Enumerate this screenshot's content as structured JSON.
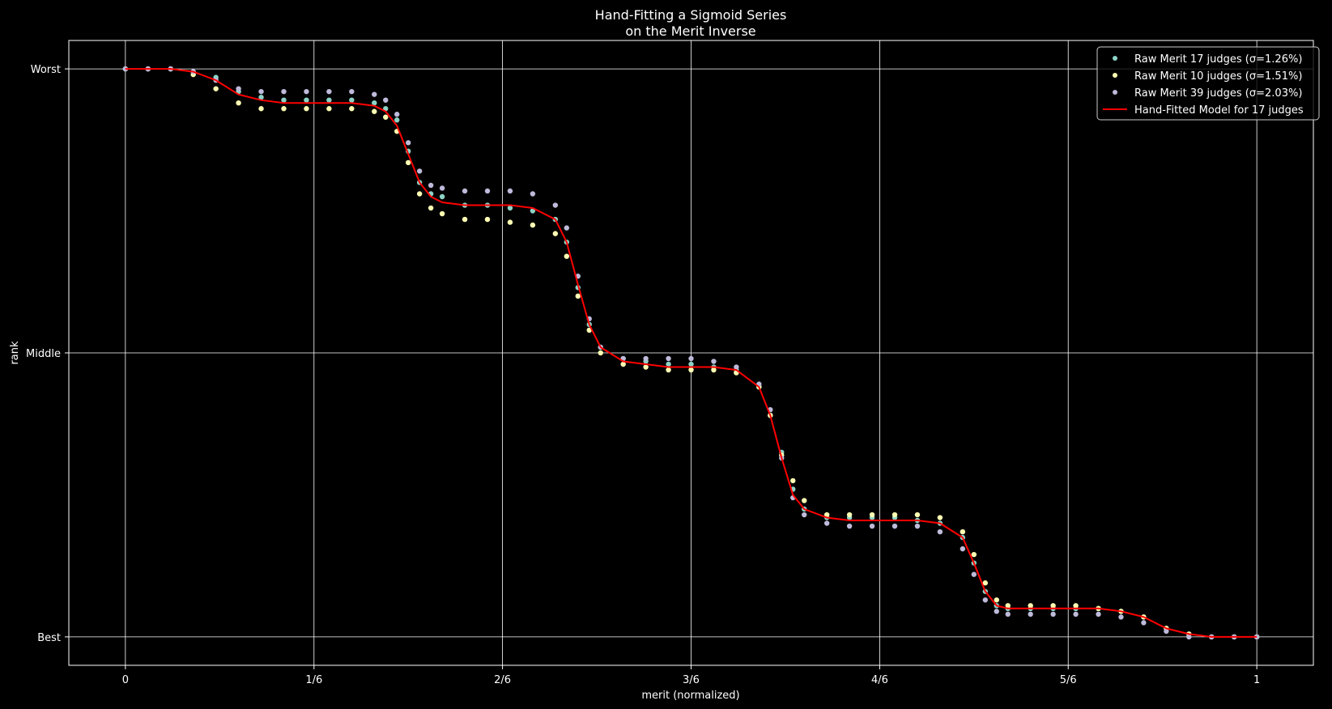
{
  "chart_data": {
    "type": "scatter",
    "title": [
      "Hand-Fitting a Sigmoid Series",
      "on the Merit Inverse"
    ],
    "xlabel": "merit (normalized)",
    "ylabel": "rank",
    "xlim": [
      -0.05,
      1.05
    ],
    "ylim": [
      -0.1,
      2.1
    ],
    "x_ticks": [
      {
        "value": 0,
        "label": "0"
      },
      {
        "value": 0.1667,
        "label": "1/6"
      },
      {
        "value": 0.3333,
        "label": "2/6"
      },
      {
        "value": 0.5,
        "label": "3/6"
      },
      {
        "value": 0.6667,
        "label": "4/6"
      },
      {
        "value": 0.8333,
        "label": "5/6"
      },
      {
        "value": 1,
        "label": "1"
      }
    ],
    "y_ticks": [
      {
        "value": 0,
        "label": "Best"
      },
      {
        "value": 1,
        "label": "Middle"
      },
      {
        "value": 2,
        "label": "Worst"
      }
    ],
    "grid": true,
    "legend_position": "top-right",
    "series": [
      {
        "name": "Raw Merit 17 judges (σ=1.26%)",
        "kind": "points",
        "color": "#8dd3c7",
        "points": [
          [
            0.0,
            2.0
          ],
          [
            0.02,
            2.0
          ],
          [
            0.04,
            2.0
          ],
          [
            0.06,
            1.99
          ],
          [
            0.08,
            1.97
          ],
          [
            0.1,
            1.92
          ],
          [
            0.12,
            1.9
          ],
          [
            0.14,
            1.89
          ],
          [
            0.16,
            1.89
          ],
          [
            0.18,
            1.89
          ],
          [
            0.2,
            1.89
          ],
          [
            0.22,
            1.88
          ],
          [
            0.23,
            1.86
          ],
          [
            0.24,
            1.82
          ],
          [
            0.25,
            1.71
          ],
          [
            0.26,
            1.6
          ],
          [
            0.27,
            1.56
          ],
          [
            0.28,
            1.55
          ],
          [
            0.3,
            1.52
          ],
          [
            0.32,
            1.52
          ],
          [
            0.34,
            1.51
          ],
          [
            0.36,
            1.5
          ],
          [
            0.38,
            1.47
          ],
          [
            0.39,
            1.39
          ],
          [
            0.4,
            1.23
          ],
          [
            0.41,
            1.1
          ],
          [
            0.42,
            1.02
          ],
          [
            0.44,
            0.98
          ],
          [
            0.46,
            0.97
          ],
          [
            0.48,
            0.96
          ],
          [
            0.5,
            0.96
          ],
          [
            0.52,
            0.95
          ],
          [
            0.54,
            0.94
          ],
          [
            0.56,
            0.88
          ],
          [
            0.57,
            0.78
          ],
          [
            0.58,
            0.65
          ],
          [
            0.59,
            0.52
          ],
          [
            0.6,
            0.45
          ],
          [
            0.62,
            0.42
          ],
          [
            0.64,
            0.42
          ],
          [
            0.66,
            0.42
          ],
          [
            0.68,
            0.42
          ],
          [
            0.7,
            0.41
          ],
          [
            0.72,
            0.4
          ],
          [
            0.74,
            0.35
          ],
          [
            0.75,
            0.26
          ],
          [
            0.76,
            0.16
          ],
          [
            0.77,
            0.11
          ],
          [
            0.78,
            0.1
          ],
          [
            0.8,
            0.1
          ],
          [
            0.82,
            0.1
          ],
          [
            0.84,
            0.1
          ],
          [
            0.86,
            0.1
          ],
          [
            0.88,
            0.09
          ],
          [
            0.9,
            0.07
          ],
          [
            0.92,
            0.03
          ],
          [
            0.94,
            0.01
          ],
          [
            0.96,
            0.0
          ],
          [
            0.98,
            0.0
          ],
          [
            1.0,
            0.0
          ]
        ]
      },
      {
        "name": "Raw Merit 10 judges (σ=1.51%)",
        "kind": "points",
        "color": "#ffffb3",
        "points": [
          [
            0.0,
            2.0
          ],
          [
            0.02,
            2.0
          ],
          [
            0.04,
            2.0
          ],
          [
            0.06,
            1.98
          ],
          [
            0.08,
            1.93
          ],
          [
            0.1,
            1.88
          ],
          [
            0.12,
            1.86
          ],
          [
            0.14,
            1.86
          ],
          [
            0.16,
            1.86
          ],
          [
            0.18,
            1.86
          ],
          [
            0.2,
            1.86
          ],
          [
            0.22,
            1.85
          ],
          [
            0.23,
            1.83
          ],
          [
            0.24,
            1.78
          ],
          [
            0.25,
            1.67
          ],
          [
            0.26,
            1.56
          ],
          [
            0.27,
            1.51
          ],
          [
            0.28,
            1.49
          ],
          [
            0.3,
            1.47
          ],
          [
            0.32,
            1.47
          ],
          [
            0.34,
            1.46
          ],
          [
            0.36,
            1.45
          ],
          [
            0.38,
            1.42
          ],
          [
            0.39,
            1.34
          ],
          [
            0.4,
            1.2
          ],
          [
            0.41,
            1.08
          ],
          [
            0.42,
            1.0
          ],
          [
            0.44,
            0.96
          ],
          [
            0.46,
            0.95
          ],
          [
            0.48,
            0.94
          ],
          [
            0.5,
            0.94
          ],
          [
            0.52,
            0.94
          ],
          [
            0.54,
            0.93
          ],
          [
            0.56,
            0.88
          ],
          [
            0.57,
            0.78
          ],
          [
            0.58,
            0.64
          ],
          [
            0.59,
            0.55
          ],
          [
            0.6,
            0.48
          ],
          [
            0.62,
            0.43
          ],
          [
            0.64,
            0.43
          ],
          [
            0.66,
            0.43
          ],
          [
            0.68,
            0.43
          ],
          [
            0.7,
            0.43
          ],
          [
            0.72,
            0.42
          ],
          [
            0.74,
            0.37
          ],
          [
            0.75,
            0.29
          ],
          [
            0.76,
            0.19
          ],
          [
            0.77,
            0.13
          ],
          [
            0.78,
            0.11
          ],
          [
            0.8,
            0.11
          ],
          [
            0.82,
            0.11
          ],
          [
            0.84,
            0.11
          ],
          [
            0.86,
            0.1
          ],
          [
            0.88,
            0.09
          ],
          [
            0.9,
            0.07
          ],
          [
            0.92,
            0.03
          ],
          [
            0.94,
            0.01
          ],
          [
            0.96,
            0.0
          ],
          [
            0.98,
            0.0
          ],
          [
            1.0,
            0.0
          ]
        ]
      },
      {
        "name": "Raw Merit 39 judges (σ=2.03%)",
        "kind": "points",
        "color": "#bebada",
        "points": [
          [
            0.0,
            2.0
          ],
          [
            0.02,
            2.0
          ],
          [
            0.04,
            2.0
          ],
          [
            0.06,
            1.99
          ],
          [
            0.08,
            1.96
          ],
          [
            0.1,
            1.93
          ],
          [
            0.12,
            1.92
          ],
          [
            0.14,
            1.92
          ],
          [
            0.16,
            1.92
          ],
          [
            0.18,
            1.92
          ],
          [
            0.2,
            1.92
          ],
          [
            0.22,
            1.91
          ],
          [
            0.23,
            1.89
          ],
          [
            0.24,
            1.84
          ],
          [
            0.25,
            1.74
          ],
          [
            0.26,
            1.64
          ],
          [
            0.27,
            1.59
          ],
          [
            0.28,
            1.58
          ],
          [
            0.3,
            1.57
          ],
          [
            0.32,
            1.57
          ],
          [
            0.34,
            1.57
          ],
          [
            0.36,
            1.56
          ],
          [
            0.38,
            1.52
          ],
          [
            0.39,
            1.44
          ],
          [
            0.4,
            1.27
          ],
          [
            0.41,
            1.12
          ],
          [
            0.42,
            1.02
          ],
          [
            0.44,
            0.98
          ],
          [
            0.46,
            0.98
          ],
          [
            0.48,
            0.98
          ],
          [
            0.5,
            0.98
          ],
          [
            0.52,
            0.97
          ],
          [
            0.54,
            0.95
          ],
          [
            0.56,
            0.89
          ],
          [
            0.57,
            0.8
          ],
          [
            0.58,
            0.63
          ],
          [
            0.59,
            0.49
          ],
          [
            0.6,
            0.43
          ],
          [
            0.62,
            0.4
          ],
          [
            0.64,
            0.39
          ],
          [
            0.66,
            0.39
          ],
          [
            0.68,
            0.39
          ],
          [
            0.7,
            0.39
          ],
          [
            0.72,
            0.37
          ],
          [
            0.74,
            0.31
          ],
          [
            0.75,
            0.22
          ],
          [
            0.76,
            0.13
          ],
          [
            0.77,
            0.09
          ],
          [
            0.78,
            0.08
          ],
          [
            0.8,
            0.08
          ],
          [
            0.82,
            0.08
          ],
          [
            0.84,
            0.08
          ],
          [
            0.86,
            0.08
          ],
          [
            0.88,
            0.07
          ],
          [
            0.9,
            0.05
          ],
          [
            0.92,
            0.02
          ],
          [
            0.94,
            0.0
          ],
          [
            0.96,
            0.0
          ],
          [
            0.98,
            0.0
          ],
          [
            1.0,
            0.0
          ]
        ]
      },
      {
        "name": "Hand-Fitted Model for 17 judges",
        "kind": "line",
        "color": "#ff0000",
        "points": [
          [
            0.0,
            2.0
          ],
          [
            0.02,
            2.0
          ],
          [
            0.04,
            2.0
          ],
          [
            0.06,
            1.99
          ],
          [
            0.08,
            1.96
          ],
          [
            0.1,
            1.91
          ],
          [
            0.12,
            1.89
          ],
          [
            0.14,
            1.88
          ],
          [
            0.16,
            1.88
          ],
          [
            0.18,
            1.88
          ],
          [
            0.2,
            1.88
          ],
          [
            0.22,
            1.87
          ],
          [
            0.23,
            1.85
          ],
          [
            0.24,
            1.8
          ],
          [
            0.25,
            1.7
          ],
          [
            0.26,
            1.6
          ],
          [
            0.27,
            1.55
          ],
          [
            0.28,
            1.53
          ],
          [
            0.3,
            1.52
          ],
          [
            0.32,
            1.52
          ],
          [
            0.34,
            1.52
          ],
          [
            0.36,
            1.51
          ],
          [
            0.38,
            1.47
          ],
          [
            0.39,
            1.39
          ],
          [
            0.4,
            1.24
          ],
          [
            0.41,
            1.1
          ],
          [
            0.42,
            1.02
          ],
          [
            0.44,
            0.97
          ],
          [
            0.46,
            0.96
          ],
          [
            0.48,
            0.95
          ],
          [
            0.5,
            0.95
          ],
          [
            0.52,
            0.95
          ],
          [
            0.54,
            0.94
          ],
          [
            0.56,
            0.88
          ],
          [
            0.57,
            0.78
          ],
          [
            0.58,
            0.63
          ],
          [
            0.59,
            0.5
          ],
          [
            0.6,
            0.45
          ],
          [
            0.62,
            0.42
          ],
          [
            0.64,
            0.41
          ],
          [
            0.66,
            0.41
          ],
          [
            0.68,
            0.41
          ],
          [
            0.7,
            0.41
          ],
          [
            0.72,
            0.4
          ],
          [
            0.74,
            0.35
          ],
          [
            0.75,
            0.26
          ],
          [
            0.76,
            0.16
          ],
          [
            0.77,
            0.11
          ],
          [
            0.78,
            0.1
          ],
          [
            0.8,
            0.1
          ],
          [
            0.82,
            0.1
          ],
          [
            0.84,
            0.1
          ],
          [
            0.86,
            0.1
          ],
          [
            0.88,
            0.09
          ],
          [
            0.9,
            0.07
          ],
          [
            0.92,
            0.03
          ],
          [
            0.94,
            0.01
          ],
          [
            0.96,
            0.0
          ],
          [
            0.98,
            0.0
          ],
          [
            1.0,
            0.0
          ]
        ]
      }
    ]
  }
}
